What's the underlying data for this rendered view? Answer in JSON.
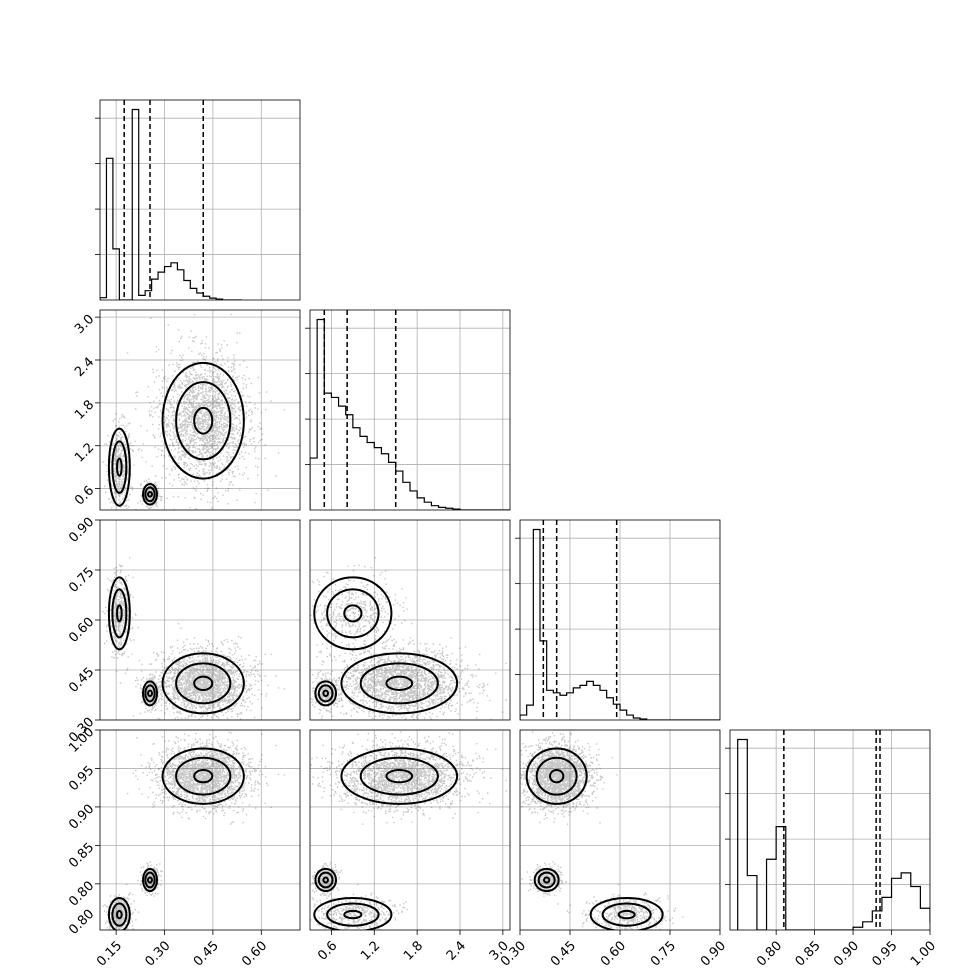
{
  "chart_data": {
    "type": "scatter",
    "subtype": "corner-plot",
    "title": "",
    "parameters": 4,
    "grid": true,
    "axes": [
      {
        "range": [
          0.1,
          0.72
        ],
        "ticks": [
          0.15,
          0.3,
          0.45,
          0.6
        ],
        "tick_labels": [
          "0.15",
          "0.30",
          "0.45",
          "0.60"
        ]
      },
      {
        "range": [
          0.3,
          3.1
        ],
        "ticks": [
          0.6,
          1.2,
          1.8,
          2.4,
          3.0
        ],
        "tick_labels": [
          "0.6",
          "1.2",
          "1.8",
          "2.4",
          "3.0"
        ]
      },
      {
        "range": [
          0.3,
          0.9
        ],
        "ticks": [
          0.3,
          0.45,
          0.6,
          0.75,
          0.9
        ],
        "tick_labels": [
          "0.30",
          "0.45",
          "0.60",
          "0.75",
          "0.90"
        ]
      },
      {
        "range": [
          0.74,
          1.0
        ],
        "ticks": [
          0.8,
          0.85,
          0.9,
          0.95,
          1.0
        ],
        "tick_labels": [
          "0.80",
          "0.85",
          "0.90",
          "0.95",
          "1.00"
        ]
      }
    ],
    "last_axis_y_tick_labels": [
      "0.80",
      "0.85",
      "0.90",
      "0.95",
      "1.00"
    ],
    "last_axis_y_extra_label": "0.80",
    "last_axis_x_tick_labels": [
      "0.80",
      "0.85",
      "0.90",
      "0.95",
      "1.00"
    ],
    "quantiles": [
      [
        0.175,
        0.255,
        0.42
      ],
      [
        0.5,
        0.82,
        1.5
      ],
      [
        0.37,
        0.41,
        0.59
      ],
      [
        0.93,
        0.81,
        0.935
      ]
    ],
    "histograms": [
      {
        "edges_start": 0.1,
        "bin_width": 0.02,
        "counts": [
          0.05,
          3.05,
          1.1,
          0.0,
          0.0,
          4.1,
          0.1,
          0.2,
          0.45,
          0.6,
          0.72,
          0.8,
          0.65,
          0.42,
          0.25,
          0.15,
          0.08,
          0.04,
          0.02,
          0,
          0,
          0
        ]
      },
      {
        "edges_start": 0.3,
        "bin_width": 0.1,
        "counts": [
          0.6,
          2.2,
          1.35,
          1.3,
          1.2,
          1.1,
          0.95,
          0.85,
          0.78,
          0.72,
          0.65,
          0.55,
          0.45,
          0.32,
          0.22,
          0.14,
          0.09,
          0.05,
          0.03,
          0.02,
          0.01,
          0,
          0,
          0,
          0,
          0,
          0,
          0
        ]
      },
      {
        "edges_start": 0.3,
        "bin_width": 0.02,
        "counts": [
          0.1,
          0.3,
          3.85,
          1.6,
          0.6,
          0.55,
          0.5,
          0.55,
          0.65,
          0.7,
          0.78,
          0.7,
          0.6,
          0.45,
          0.32,
          0.2,
          0.1,
          0.04,
          0.02,
          0,
          0,
          0,
          0,
          0,
          0,
          0,
          0,
          0,
          0,
          0
        ]
      },
      {
        "edges_start": 0.75,
        "bin_width": 0.0125,
        "counts": [
          3.5,
          1.0,
          0.0,
          1.3,
          1.9,
          0.0,
          0.0,
          0.0,
          0.0,
          0.0,
          0.0,
          0.0,
          0.05,
          0.15,
          0.35,
          0.6,
          0.95,
          1.05,
          0.8,
          0.4,
          0.15,
          0.05
        ]
      }
    ],
    "clusters": [
      {
        "p": [
          0.16,
          0.9,
          0.62,
          0.76
        ],
        "s": [
          0.018,
          0.3,
          0.06,
          0.012
        ],
        "n": 500
      },
      {
        "p": [
          0.255,
          0.52,
          0.38,
          0.805
        ],
        "s": [
          0.012,
          0.08,
          0.02,
          0.008
        ],
        "n": 350
      },
      {
        "p": [
          0.42,
          1.55,
          0.41,
          0.94
        ],
        "s": [
          0.07,
          0.45,
          0.05,
          0.02
        ],
        "n": 2200
      }
    ]
  }
}
